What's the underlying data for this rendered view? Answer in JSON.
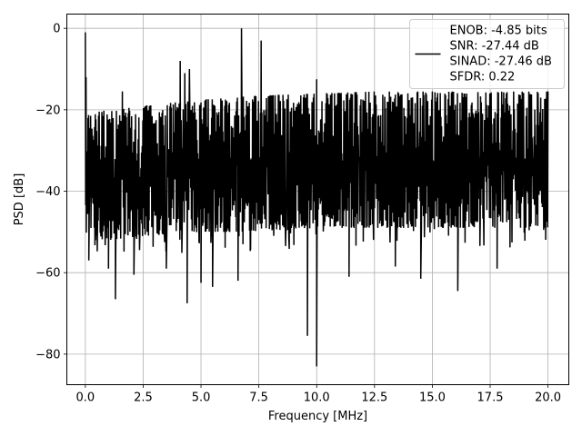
{
  "chart_data": {
    "type": "line",
    "title": "",
    "xlabel": "Frequency [MHz]",
    "ylabel": "PSD [dB]",
    "xlim": [
      -0.8,
      20.9
    ],
    "ylim": [
      -87.5,
      3.5
    ],
    "xticks": [
      0.0,
      2.5,
      5.0,
      7.5,
      10.0,
      12.5,
      15.0,
      17.5,
      20.0
    ],
    "xtick_labels": [
      "0.0",
      "2.5",
      "5.0",
      "7.5",
      "10.0",
      "12.5",
      "15.0",
      "17.5",
      "20.0"
    ],
    "yticks": [
      0,
      -20,
      -40,
      -60,
      -80
    ],
    "ytick_labels": [
      "0",
      "−20",
      "−40",
      "−60",
      "−80"
    ],
    "grid": true,
    "legend_position": "top-right",
    "series_color": "#000000",
    "series": [
      {
        "name": "ENOB: -4.85 bits",
        "legend_lines": [
          "ENOB: -4.85 bits",
          "SNR: -27.44 dB",
          "SINAD: -27.46 dB",
          "SFDR: 0.22"
        ],
        "x_range": [
          0.0,
          20.0
        ],
        "envelope": {
          "x": [
            0.0,
            0.1,
            1.0,
            2.5,
            5.0,
            7.5,
            10.0,
            12.5,
            15.0,
            17.5,
            20.0
          ],
          "upper": [
            -22,
            -21,
            -20,
            -19,
            -17.5,
            -16.5,
            -16,
            -15.5,
            -15.5,
            -15.5,
            -15.5
          ],
          "lower": [
            -50,
            -52,
            -52,
            -51,
            -50,
            -50,
            -49,
            -49,
            -49,
            -49,
            -49
          ]
        },
        "peaks": [
          {
            "x": 0.0,
            "y": -1
          },
          {
            "x": 0.03,
            "y": -12
          },
          {
            "x": 1.6,
            "y": -15.5
          },
          {
            "x": 4.1,
            "y": -8
          },
          {
            "x": 4.3,
            "y": -11
          },
          {
            "x": 4.5,
            "y": -10
          },
          {
            "x": 6.75,
            "y": 0
          },
          {
            "x": 7.6,
            "y": -3
          },
          {
            "x": 10.0,
            "y": -12.5
          }
        ],
        "dips": [
          {
            "x": 0.15,
            "y": -57
          },
          {
            "x": 1.0,
            "y": -59
          },
          {
            "x": 1.3,
            "y": -66.5
          },
          {
            "x": 2.1,
            "y": -60.5
          },
          {
            "x": 3.5,
            "y": -59
          },
          {
            "x": 4.4,
            "y": -67.5
          },
          {
            "x": 5.0,
            "y": -62.5
          },
          {
            "x": 5.5,
            "y": -63.5
          },
          {
            "x": 6.6,
            "y": -62
          },
          {
            "x": 9.6,
            "y": -75.5
          },
          {
            "x": 10.0,
            "y": -83
          },
          {
            "x": 11.4,
            "y": -61
          },
          {
            "x": 13.4,
            "y": -58.5
          },
          {
            "x": 14.5,
            "y": -61.5
          },
          {
            "x": 16.1,
            "y": -64.5
          },
          {
            "x": 17.8,
            "y": -59
          }
        ]
      }
    ]
  }
}
